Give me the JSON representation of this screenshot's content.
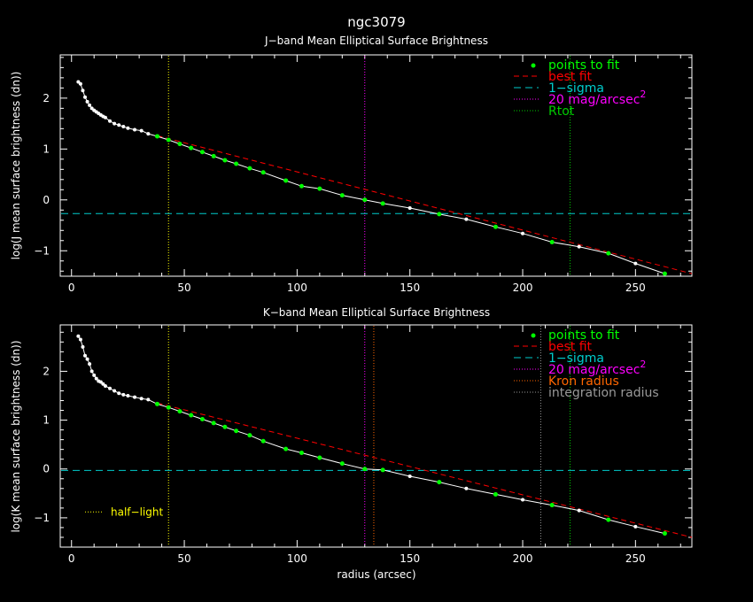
{
  "figure_title": "ngc3079",
  "xlabel": "radius (arcsec)",
  "colors": {
    "background": "#000000",
    "axes": "#ffffff",
    "profile": "#ffffff",
    "fit_points": "#00ff00",
    "best_fit": "#ff0000",
    "one_sigma": "#00cccc",
    "mag20": "#ff00ff",
    "rtot": "#00cc00",
    "kron": "#ff6600",
    "integration": "#999999",
    "half_light": "#ffff00"
  },
  "chart_data": [
    {
      "type": "scatter",
      "title": "J−band Mean Elliptical Surface Brightness",
      "xlabel": "",
      "ylabel": "log(J mean surface brightness (dn))",
      "xlim": [
        -5,
        275
      ],
      "ylim": [
        -1.5,
        2.85
      ],
      "x_ticks": [
        0,
        50,
        100,
        150,
        200,
        250
      ],
      "y_ticks": [
        -1,
        0,
        1,
        2
      ],
      "y_tick_labels": [
        "−1",
        "0",
        "1",
        "2"
      ],
      "legend_position": "top-right",
      "legend": [
        {
          "label": "points to fit",
          "style": "dot",
          "color": "#00ff00"
        },
        {
          "label": "best fit",
          "style": "dash",
          "color": "#ff0000"
        },
        {
          "label": "1−sigma",
          "style": "longdash",
          "color": "#00cccc"
        },
        {
          "label": "20 mag/arcsec",
          "sup": "2",
          "style": "dot-line",
          "color": "#ff00ff"
        },
        {
          "label": "Rtot",
          "style": "dot-line",
          "color": "#00cc00"
        }
      ],
      "profile": {
        "x": [
          3,
          4,
          5,
          6,
          7,
          8,
          9,
          10,
          11,
          12,
          13,
          14,
          15,
          17,
          19,
          21,
          23,
          25,
          28,
          31,
          34,
          38,
          43,
          48,
          53,
          58,
          63,
          68,
          73,
          79,
          85,
          95,
          102,
          110,
          120,
          130,
          138,
          150,
          163,
          175,
          188,
          200,
          213,
          225,
          238,
          250,
          263
        ],
        "y": [
          2.32,
          2.28,
          2.15,
          2.02,
          1.93,
          1.86,
          1.8,
          1.76,
          1.73,
          1.7,
          1.67,
          1.64,
          1.62,
          1.55,
          1.5,
          1.47,
          1.44,
          1.41,
          1.38,
          1.36,
          1.3,
          1.25,
          1.18,
          1.1,
          1.02,
          0.94,
          0.86,
          0.78,
          0.71,
          0.62,
          0.54,
          0.38,
          0.27,
          0.22,
          0.09,
          0.0,
          -0.07,
          -0.16,
          -0.28,
          -0.38,
          -0.53,
          -0.66,
          -0.83,
          -0.92,
          -1.05,
          -1.25,
          -1.45
        ]
      },
      "fit_points": {
        "x": [
          38,
          43,
          48,
          53,
          58,
          63,
          68,
          73,
          79,
          85,
          95,
          102,
          110,
          120,
          130,
          138,
          163,
          188,
          213,
          238,
          263
        ],
        "y": [
          1.25,
          1.18,
          1.1,
          1.02,
          0.94,
          0.86,
          0.78,
          0.71,
          0.62,
          0.54,
          0.38,
          0.27,
          0.22,
          0.09,
          0.0,
          -0.07,
          -0.28,
          -0.53,
          -0.83,
          -1.05,
          -1.45
        ]
      },
      "best_fit_line": {
        "x": [
          38,
          275
        ],
        "y": [
          1.26,
          -1.45
        ]
      },
      "one_sigma": -0.27,
      "mag20_radius": 130,
      "rtot_radius": 221,
      "half_light_radius": 43
    },
    {
      "type": "scatter",
      "title": "K−band Mean Elliptical Surface Brightness",
      "xlabel": "radius (arcsec)",
      "ylabel": "log(K mean surface brightness (dn))",
      "xlim": [
        -5,
        275
      ],
      "ylim": [
        -1.6,
        2.95
      ],
      "x_ticks": [
        0,
        50,
        100,
        150,
        200,
        250
      ],
      "y_ticks": [
        -1,
        0,
        1,
        2
      ],
      "y_tick_labels": [
        "−1",
        "0",
        "1",
        "2"
      ],
      "legend_position": "top-right",
      "legend": [
        {
          "label": "points to fit",
          "style": "dot",
          "color": "#00ff00"
        },
        {
          "label": "best fit",
          "style": "dash",
          "color": "#ff0000"
        },
        {
          "label": "1−sigma",
          "style": "longdash",
          "color": "#00cccc"
        },
        {
          "label": "20 mag/arcsec",
          "sup": "2",
          "style": "dot-line",
          "color": "#ff00ff"
        },
        {
          "label": "Kron radius",
          "style": "dot-line",
          "color": "#ff6600"
        },
        {
          "label": "integration radius",
          "style": "dot-line",
          "color": "#999999"
        }
      ],
      "half_light_label": "half−light",
      "profile": {
        "x": [
          3,
          4,
          5,
          6,
          7,
          8,
          9,
          10,
          11,
          12,
          13,
          14,
          15,
          17,
          19,
          21,
          23,
          25,
          28,
          31,
          34,
          38,
          43,
          48,
          53,
          58,
          63,
          68,
          73,
          79,
          85,
          95,
          102,
          110,
          120,
          130,
          138,
          150,
          163,
          175,
          188,
          200,
          213,
          225,
          238,
          250,
          263
        ],
        "y": [
          2.72,
          2.65,
          2.5,
          2.32,
          2.25,
          2.15,
          2.0,
          1.92,
          1.85,
          1.8,
          1.78,
          1.74,
          1.7,
          1.65,
          1.6,
          1.55,
          1.52,
          1.5,
          1.47,
          1.44,
          1.42,
          1.33,
          1.26,
          1.18,
          1.1,
          1.02,
          0.94,
          0.86,
          0.78,
          0.69,
          0.57,
          0.41,
          0.33,
          0.23,
          0.11,
          0.0,
          -0.02,
          -0.15,
          -0.27,
          -0.4,
          -0.52,
          -0.63,
          -0.74,
          -0.85,
          -1.04,
          -1.18,
          -1.32
        ]
      },
      "fit_points": {
        "x": [
          38,
          43,
          48,
          53,
          58,
          63,
          68,
          73,
          79,
          85,
          95,
          102,
          110,
          120,
          130,
          138,
          163,
          188,
          213,
          238,
          263
        ],
        "y": [
          1.33,
          1.26,
          1.18,
          1.1,
          1.02,
          0.94,
          0.86,
          0.78,
          0.69,
          0.57,
          0.41,
          0.33,
          0.23,
          0.11,
          0.0,
          -0.02,
          -0.27,
          -0.52,
          -0.74,
          -1.04,
          -1.32
        ]
      },
      "best_fit_line": {
        "x": [
          38,
          275
        ],
        "y": [
          1.35,
          -1.4
        ]
      },
      "one_sigma": -0.03,
      "mag20_radius": 130,
      "kron_radius": 134,
      "integration_radius": 208,
      "rtot_radius": 221,
      "half_light_radius": 43
    }
  ]
}
